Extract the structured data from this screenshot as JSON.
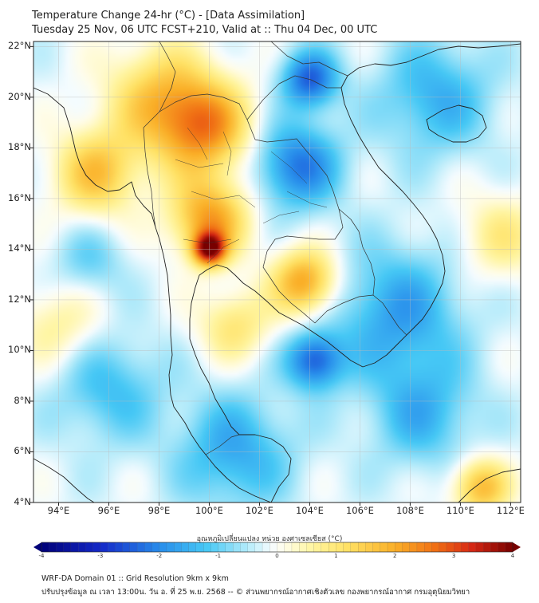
{
  "title": {
    "line1": "Temperature Change 24-hr (°C) - [Data Assimilation]",
    "line2": "Tuesday 25 Nov, 06 UTC FCST+210, Valid at :: Thu 04 Dec, 00 UTC"
  },
  "map": {
    "lat_labels": [
      "22°N",
      "20°N",
      "18°N",
      "16°N",
      "14°N",
      "12°N",
      "10°N",
      "8°N",
      "6°N",
      "4°N"
    ],
    "lon_labels": [
      "94°E",
      "96°E",
      "98°E",
      "100°E",
      "102°E",
      "104°E",
      "106°E",
      "108°E",
      "110°E",
      "112°E"
    ],
    "extent": {
      "lon_min": 93,
      "lon_max": 112.4,
      "lat_min": 4,
      "lat_max": 22.2
    },
    "anomalies": [
      {
        "name": "hot-core-central-thailand",
        "lon": 100.0,
        "lat": 14.0,
        "value": 3.5,
        "spread": 0.45
      },
      {
        "name": "warm-central-thailand",
        "lon": 100.0,
        "lat": 15.2,
        "value": 2.3,
        "spread": 1.1
      },
      {
        "name": "warm-northern-thailand",
        "lon": 99.8,
        "lat": 18.8,
        "value": 2.4,
        "spread": 1.3
      },
      {
        "name": "warm-myanmar-north",
        "lon": 98.0,
        "lat": 20.0,
        "value": 1.6,
        "spread": 1.5
      },
      {
        "name": "warm-myanmar-west",
        "lon": 95.5,
        "lat": 17.0,
        "value": 1.8,
        "spread": 1.2
      },
      {
        "name": "warm-cambodia",
        "lon": 103.8,
        "lat": 12.7,
        "value": 2.4,
        "spread": 0.9
      },
      {
        "name": "warm-gulf",
        "lon": 101.0,
        "lat": 11.0,
        "value": 1.2,
        "spread": 1.0
      },
      {
        "name": "warm-sea-southeast",
        "lon": 110.8,
        "lat": 4.6,
        "value": 2.0,
        "spread": 0.8
      },
      {
        "name": "warm-east",
        "lon": 111.6,
        "lat": 14.5,
        "value": 1.0,
        "spread": 1.2
      },
      {
        "name": "warm-andaman",
        "lon": 94.0,
        "lat": 11.0,
        "value": 0.9,
        "spread": 1.2
      },
      {
        "name": "cool-laos-northeast",
        "lon": 103.5,
        "lat": 17.3,
        "value": -2.0,
        "spread": 1.2
      },
      {
        "name": "cool-north-vietnam",
        "lon": 104.0,
        "lat": 20.7,
        "value": -2.2,
        "spread": 0.8
      },
      {
        "name": "cool-vietnam-south",
        "lon": 104.2,
        "lat": 9.6,
        "value": -2.2,
        "spread": 0.8
      },
      {
        "name": "cool-east-sea",
        "lon": 107.5,
        "lat": 11.5,
        "value": -1.5,
        "spread": 1.8
      },
      {
        "name": "cool-hainan",
        "lon": 109.0,
        "lat": 20.0,
        "value": -1.3,
        "spread": 1.6
      },
      {
        "name": "cool-malaysia",
        "lon": 101.0,
        "lat": 6.0,
        "value": -1.4,
        "spread": 1.6
      },
      {
        "name": "cool-andaman-south",
        "lon": 96.0,
        "lat": 8.5,
        "value": -1.1,
        "spread": 1.5
      },
      {
        "name": "cool-southwest",
        "lon": 95.2,
        "lat": 13.5,
        "value": -0.8,
        "spread": 1.0
      },
      {
        "name": "cool-southeast-sea",
        "lon": 108.5,
        "lat": 7.5,
        "value": -1.2,
        "spread": 1.5
      }
    ],
    "base_value": -0.2
  },
  "colorbar": {
    "title": "อุณหภูมิเปลี่ยนแปลง หน่วย องศาเซลเซียส (°C)",
    "ticks": [
      "-4",
      "-3",
      "-2",
      "-1",
      "0",
      "1",
      "2",
      "3",
      "4"
    ],
    "range": [
      -4,
      4
    ]
  },
  "footer": {
    "line1": "WRF-DA Domain 01 :: Grid Resolution 9km x 9km",
    "line2": "ปรับปรุงข้อมูล ณ เวลา 13:00น. วัน อ. ที่ 25 พ.ย. 2568 -- © ส่วนพยากรณ์อากาศเชิงตัวเลข กองพยากรณ์อากาศ กรมอุตุนิยมวิทยา"
  },
  "colors": {
    "coast": "#222222",
    "border": "#333333",
    "grid": "#bbbbbb"
  }
}
